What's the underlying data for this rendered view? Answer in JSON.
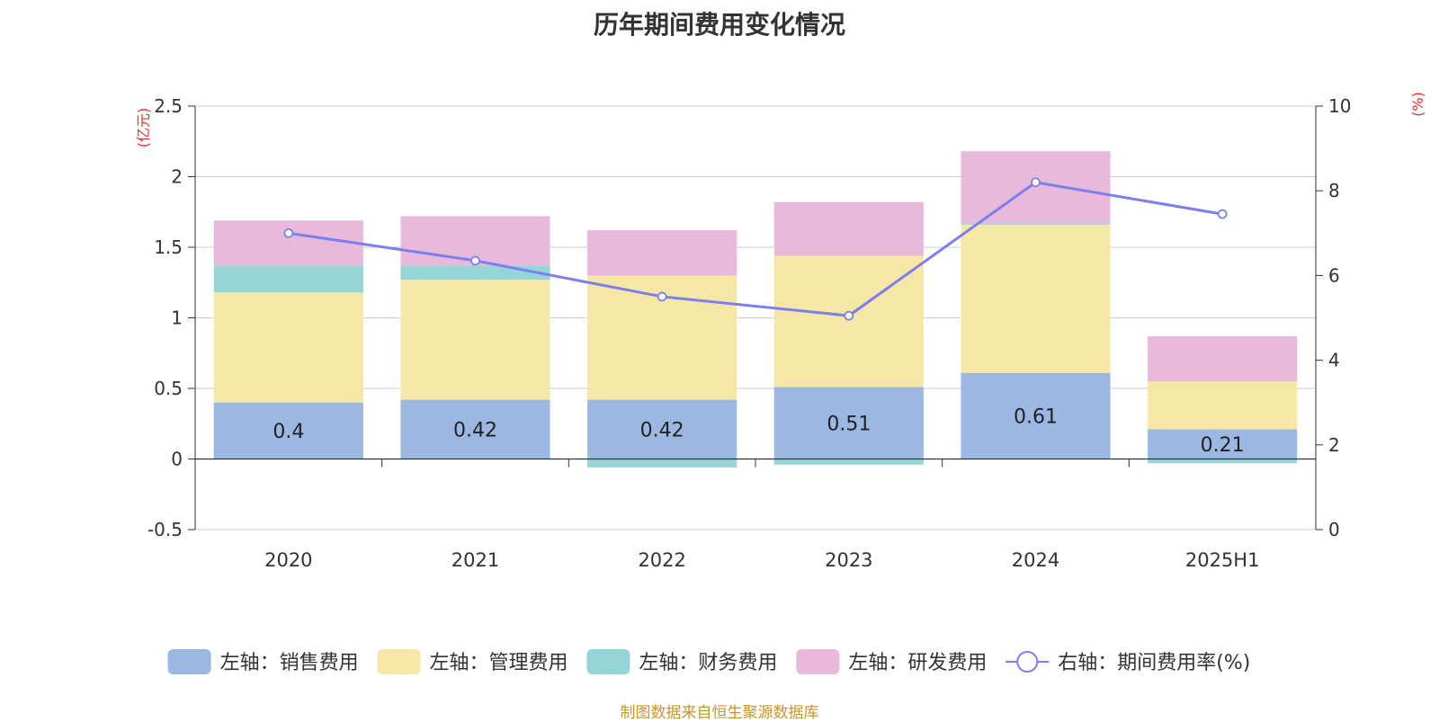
{
  "title": "历年期间费用变化情况",
  "source": "制图数据来自恒生聚源数据库",
  "chart_data": {
    "type": "bar",
    "categories": [
      "2020",
      "2021",
      "2022",
      "2023",
      "2024",
      "2025H1"
    ],
    "left_axis": {
      "unit_label": "(亿元)",
      "ticks": [
        "-0.5",
        "0",
        "0.5",
        "1",
        "1.5",
        "2",
        "2.5"
      ],
      "range": [
        -0.5,
        2.5
      ]
    },
    "right_axis": {
      "unit_label": "(%)",
      "ticks": [
        "0",
        "2",
        "4",
        "6",
        "8",
        "10"
      ],
      "range": [
        0,
        10
      ]
    },
    "grid": true,
    "legend_position": "bottom",
    "series": [
      {
        "name": "左轴：销售费用",
        "color": "#9bb8e3",
        "values": [
          0.4,
          0.42,
          0.42,
          0.51,
          0.61,
          0.21
        ],
        "labels": [
          "0.4",
          "0.42",
          "0.42",
          "0.51",
          "0.61",
          "0.21"
        ]
      },
      {
        "name": "左轴：管理费用",
        "color": "#f7e7a6",
        "values": [
          0.78,
          0.85,
          0.88,
          0.93,
          1.05,
          0.34
        ]
      },
      {
        "name": "左轴：财务费用",
        "color": "#96d5d6",
        "values": [
          0.19,
          0.1,
          -0.06,
          -0.04,
          0.01,
          -0.03
        ]
      },
      {
        "name": "左轴：研发费用",
        "color": "#e8b9da",
        "values": [
          0.32,
          0.35,
          0.32,
          0.38,
          0.51,
          0.32
        ]
      }
    ],
    "line_series": {
      "name": "右轴：期间费用率(%)",
      "color": "#7b7ff0",
      "values": [
        7.0,
        6.35,
        5.5,
        5.05,
        8.2,
        7.45
      ]
    }
  }
}
